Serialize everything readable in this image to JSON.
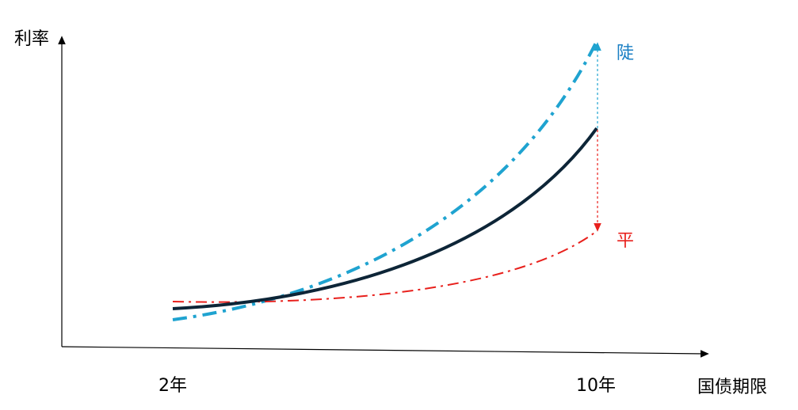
{
  "axes": {
    "y_label": "利率",
    "x_label": "国债期限",
    "x_ticks": [
      "2年",
      "10年"
    ]
  },
  "curves": {
    "steep_label": "陡",
    "flat_label": "平"
  }
}
